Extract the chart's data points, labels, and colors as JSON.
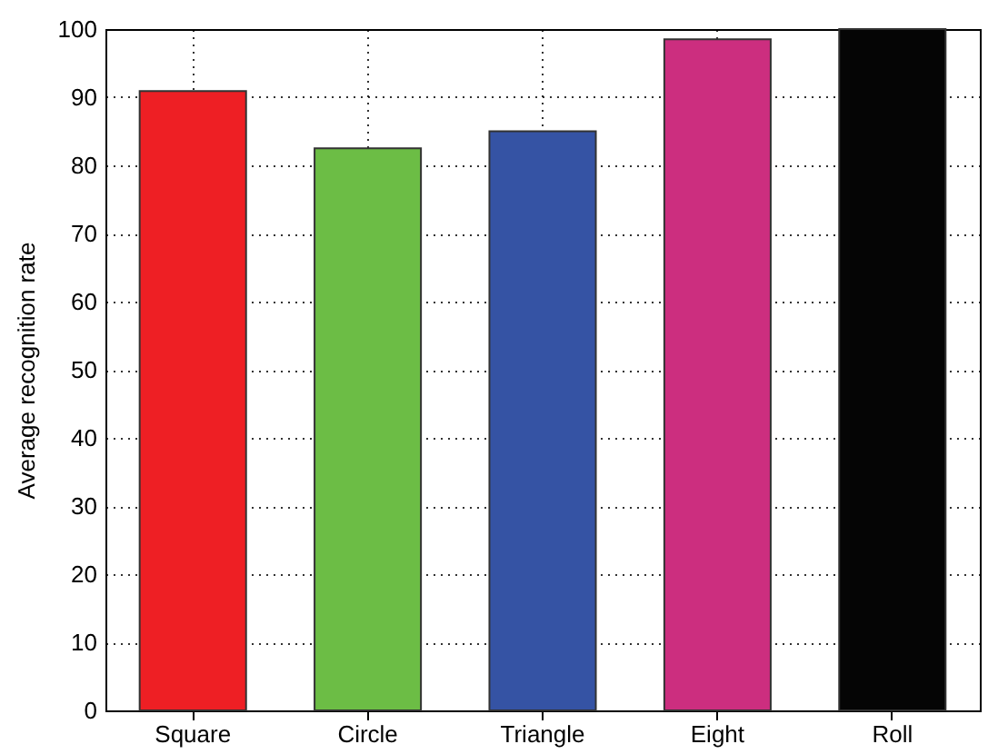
{
  "chart_data": {
    "type": "bar",
    "ylabel": "Average recognition rate",
    "categories": [
      "Square",
      "Circle",
      "Triangle",
      "Eight",
      "Roll"
    ],
    "values": [
      90.9,
      82.5,
      85,
      98.5,
      100
    ],
    "colors": [
      "#ee1f24",
      "#6cbd45",
      "#3553a4",
      "#cc2e7f",
      "#050505"
    ],
    "ylim": [
      0,
      100
    ],
    "yticks": [
      0,
      10,
      20,
      30,
      40,
      50,
      60,
      70,
      80,
      90,
      100
    ],
    "grid": true
  }
}
